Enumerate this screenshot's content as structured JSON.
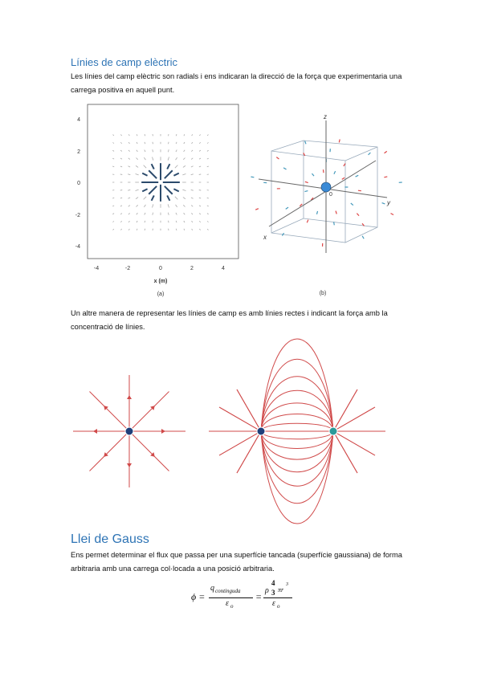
{
  "section1": {
    "heading": "Línies de camp elèctric",
    "paragraph": "Les línies del camp elèctric son radials i ens indicaran la direcció de la força que experimentaria una carrega positiva en aquell punt."
  },
  "figure_a": {
    "yticks": [
      "4",
      "2",
      "0",
      "-2",
      "-4"
    ],
    "xticks": [
      "-4",
      "-2",
      "0",
      "2",
      "4"
    ],
    "xlabel": "x (m)",
    "caption": "(a)"
  },
  "figure_b": {
    "z": "z",
    "y": "y",
    "x": "x",
    "origin": "0",
    "caption": "(b)"
  },
  "paragraph2": "Un altre manera de representar les línies de camp es amb línies rectes i indicant la força amb la concentració de línies.",
  "section2": {
    "heading": "Llei de Gauss",
    "paragraph": "Ens permet determinar el flux que passa per una superfície tancada (superfície gaussiana) de forma arbitraria amb una carrega col·locada a una posició arbitraria."
  },
  "formula": {
    "lhs": "ϕ =",
    "q": "q",
    "q_sub": "contingudа",
    "eps1": "ε",
    "eps1_sub": "o",
    "eq": "=",
    "rho": "ρ",
    "four": "4",
    "three": "3",
    "pir": "πr",
    "exp": "3",
    "eps2": "ε",
    "eps2_sub": "o"
  }
}
